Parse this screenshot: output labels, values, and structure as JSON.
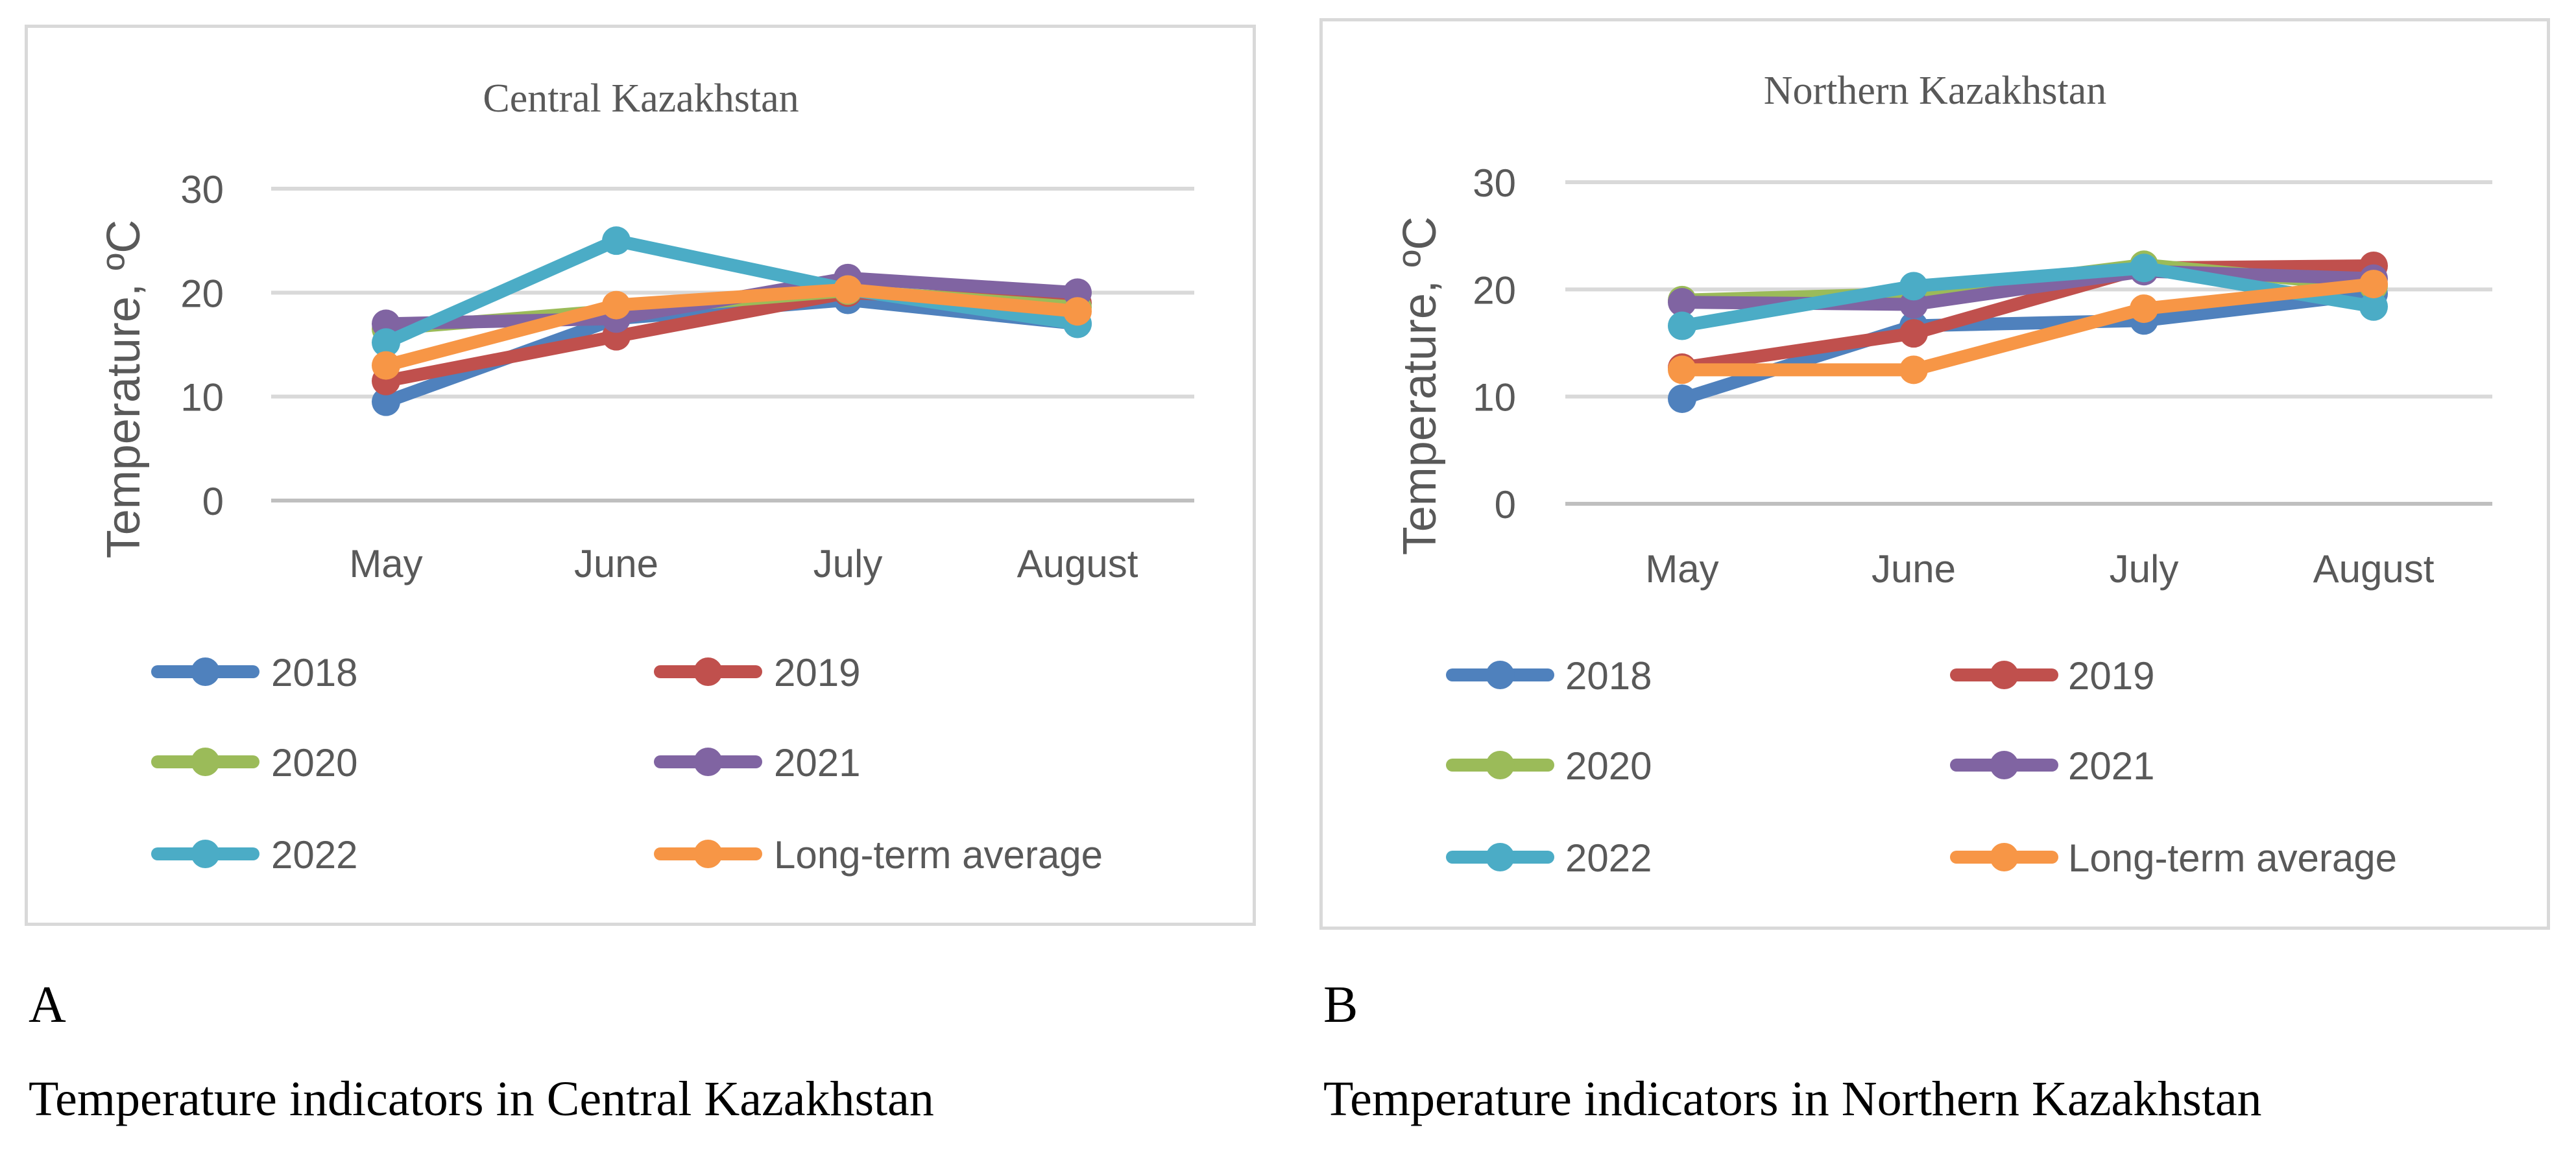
{
  "chart_data": [
    {
      "type": "line",
      "title": "Central Kazakhstan",
      "xlabel": "",
      "ylabel": "Temperature, ºC",
      "categories": [
        "May",
        "June",
        "July",
        "August"
      ],
      "yticks": [
        "0",
        "10",
        "20",
        "30"
      ],
      "ylim": [
        0,
        30
      ],
      "grid": true,
      "legend_position": "bottom",
      "series": [
        {
          "name": "2018",
          "color": "#4f81bd",
          "values": [
            9.5,
            17.5,
            19.3,
            17.0
          ]
        },
        {
          "name": "2019",
          "color": "#c0504d",
          "values": [
            11.5,
            15.8,
            20.0,
            19.0
          ]
        },
        {
          "name": "2020",
          "color": "#9bbb59",
          "values": [
            16.5,
            18.3,
            20.2,
            18.6
          ]
        },
        {
          "name": "2021",
          "color": "#8064a2",
          "values": [
            17.0,
            17.5,
            21.4,
            20.0
          ]
        },
        {
          "name": "2022",
          "color": "#4bacc6",
          "values": [
            15.2,
            25.0,
            20.3,
            17.0
          ]
        },
        {
          "name": "Long-term average",
          "color": "#f79646",
          "values": [
            13.0,
            18.8,
            20.3,
            18.2
          ]
        }
      ]
    },
    {
      "type": "line",
      "title": "Northern Kazakhstan",
      "xlabel": "",
      "ylabel": "Temperature, ºC",
      "categories": [
        "May",
        "June",
        "July",
        "August"
      ],
      "yticks": [
        "0",
        "10",
        "20",
        "30"
      ],
      "ylim": [
        0,
        30
      ],
      "grid": true,
      "legend_position": "bottom",
      "series": [
        {
          "name": "2018",
          "color": "#4f81bd",
          "values": [
            9.8,
            16.6,
            17.1,
            19.6
          ]
        },
        {
          "name": "2019",
          "color": "#c0504d",
          "values": [
            12.7,
            15.9,
            22.0,
            22.2
          ]
        },
        {
          "name": "2020",
          "color": "#9bbb59",
          "values": [
            19.0,
            19.6,
            22.3,
            20.3
          ]
        },
        {
          "name": "2021",
          "color": "#8064a2",
          "values": [
            18.8,
            18.6,
            21.7,
            21.0
          ]
        },
        {
          "name": "2022",
          "color": "#4bacc6",
          "values": [
            16.6,
            20.3,
            22.0,
            18.4
          ]
        },
        {
          "name": "Long-term average",
          "color": "#f79646",
          "values": [
            12.5,
            12.5,
            18.2,
            20.5
          ]
        }
      ]
    }
  ],
  "panels": [
    {
      "letter": "A",
      "caption": "Temperature indicators in Central Kazakhstan"
    },
    {
      "letter": "B",
      "caption": "Temperature indicators in Northern Kazakhstan"
    }
  ]
}
